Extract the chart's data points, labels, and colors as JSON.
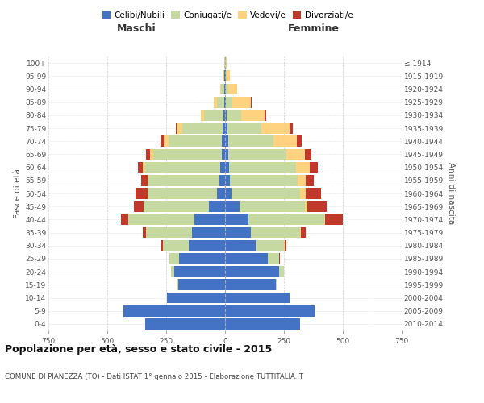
{
  "age_groups": [
    "0-4",
    "5-9",
    "10-14",
    "15-19",
    "20-24",
    "25-29",
    "30-34",
    "35-39",
    "40-44",
    "45-49",
    "50-54",
    "55-59",
    "60-64",
    "65-69",
    "70-74",
    "75-79",
    "80-84",
    "85-89",
    "90-94",
    "95-99",
    "100+"
  ],
  "birth_years": [
    "2010-2014",
    "2005-2009",
    "2000-2004",
    "1995-1999",
    "1990-1994",
    "1985-1989",
    "1980-1984",
    "1975-1979",
    "1970-1974",
    "1965-1969",
    "1960-1964",
    "1955-1959",
    "1950-1954",
    "1945-1949",
    "1940-1944",
    "1935-1939",
    "1930-1934",
    "1925-1929",
    "1920-1924",
    "1915-1919",
    "≤ 1914"
  ],
  "males": {
    "celibe": [
      340,
      430,
      245,
      200,
      215,
      195,
      155,
      140,
      130,
      70,
      35,
      25,
      20,
      15,
      15,
      10,
      8,
      3,
      2,
      2,
      0
    ],
    "coniugato": [
      0,
      2,
      2,
      5,
      15,
      40,
      110,
      195,
      280,
      275,
      290,
      300,
      320,
      290,
      225,
      170,
      80,
      30,
      15,
      5,
      2
    ],
    "vedovo": [
      0,
      0,
      0,
      0,
      0,
      0,
      0,
      0,
      2,
      2,
      5,
      5,
      8,
      12,
      20,
      25,
      15,
      15,
      5,
      2,
      0
    ],
    "divorziato": [
      0,
      0,
      0,
      0,
      0,
      2,
      5,
      15,
      30,
      40,
      50,
      25,
      22,
      18,
      15,
      5,
      0,
      0,
      0,
      0,
      0
    ]
  },
  "females": {
    "nubile": [
      320,
      380,
      275,
      215,
      230,
      180,
      130,
      110,
      100,
      60,
      28,
      22,
      18,
      15,
      15,
      10,
      8,
      5,
      3,
      2,
      0
    ],
    "coniugata": [
      0,
      2,
      2,
      5,
      20,
      50,
      120,
      210,
      320,
      280,
      290,
      285,
      285,
      245,
      190,
      145,
      60,
      25,
      12,
      5,
      3
    ],
    "vedova": [
      0,
      0,
      0,
      0,
      0,
      0,
      2,
      3,
      5,
      10,
      25,
      35,
      55,
      80,
      100,
      120,
      100,
      80,
      35,
      12,
      5
    ],
    "divorziata": [
      0,
      0,
      0,
      0,
      0,
      3,
      8,
      20,
      75,
      80,
      65,
      35,
      35,
      25,
      20,
      12,
      5,
      2,
      0,
      0,
      0
    ]
  },
  "colors": {
    "celibe": "#4472c4",
    "coniugato": "#c5d9a0",
    "vedovo": "#ffd27f",
    "divorziato": "#c0392b"
  },
  "xlim": 750,
  "title": "Popolazione per età, sesso e stato civile - 2015",
  "subtitle": "COMUNE DI PIANEZZA (TO) - Dati ISTAT 1° gennaio 2015 - Elaborazione TUTTITALIA.IT",
  "ylabel_left": "Fasce di età",
  "ylabel_right": "Anni di nascita",
  "xlabel_left": "Maschi",
  "xlabel_right": "Femmine",
  "background_color": "#ffffff",
  "grid_color": "#cccccc",
  "xticks": [
    750,
    500,
    250,
    0,
    250,
    500,
    750
  ]
}
